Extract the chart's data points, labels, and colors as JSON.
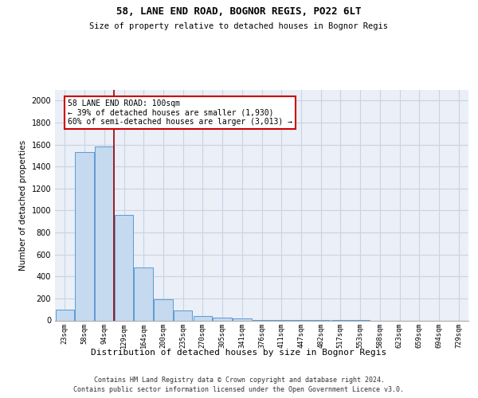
{
  "title": "58, LANE END ROAD, BOGNOR REGIS, PO22 6LT",
  "subtitle": "Size of property relative to detached houses in Bognor Regis",
  "xlabel": "Distribution of detached houses by size in Bognor Regis",
  "ylabel": "Number of detached properties",
  "bar_labels": [
    "23sqm",
    "58sqm",
    "94sqm",
    "129sqm",
    "164sqm",
    "200sqm",
    "235sqm",
    "270sqm",
    "305sqm",
    "341sqm",
    "376sqm",
    "411sqm",
    "447sqm",
    "482sqm",
    "517sqm",
    "553sqm",
    "588sqm",
    "623sqm",
    "659sqm",
    "694sqm",
    "729sqm"
  ],
  "bar_values": [
    100,
    1530,
    1580,
    960,
    480,
    190,
    90,
    40,
    25,
    15,
    5,
    3,
    2,
    1,
    1,
    1,
    0,
    0,
    0,
    0,
    0
  ],
  "bar_color": "#c5d9ef",
  "bar_edge_color": "#5b9bd5",
  "vline_x": 2.5,
  "vline_color": "#990000",
  "annotation_text": "58 LANE END ROAD: 100sqm\n← 39% of detached houses are smaller (1,930)\n60% of semi-detached houses are larger (3,013) →",
  "annotation_edge_color": "#cc0000",
  "ylim": [
    0,
    2100
  ],
  "yticks": [
    0,
    200,
    400,
    600,
    800,
    1000,
    1200,
    1400,
    1600,
    1800,
    2000
  ],
  "grid_color": "#c8d4e3",
  "bg_color": "#eaeff8",
  "footer1": "Contains HM Land Registry data © Crown copyright and database right 2024.",
  "footer2": "Contains public sector information licensed under the Open Government Licence v3.0."
}
